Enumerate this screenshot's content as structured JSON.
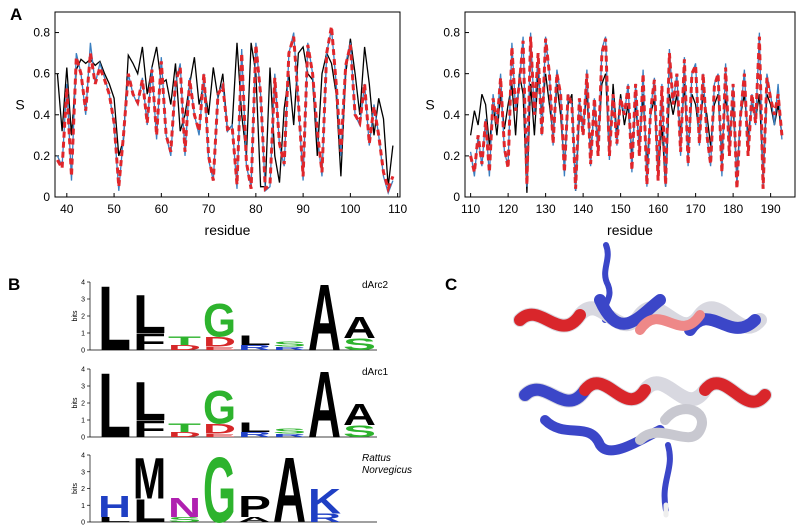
{
  "labels": [
    "A",
    "B",
    "C"
  ],
  "chart_data": [
    {
      "type": "line",
      "ylabel": "S",
      "xlabel": "residue",
      "xlim": [
        37.5,
        110.5
      ],
      "xticks": [
        40,
        50,
        60,
        70,
        80,
        90,
        100,
        110
      ],
      "ylim": [
        0,
        0.9
      ],
      "yticks": [
        0,
        0.2,
        0.4,
        0.6,
        0.8
      ],
      "x": [
        38,
        39,
        40,
        41,
        42,
        43,
        44,
        45,
        46,
        47,
        48,
        49,
        50,
        51,
        52,
        53,
        54,
        55,
        56,
        57,
        58,
        59,
        60,
        61,
        62,
        63,
        64,
        65,
        66,
        67,
        68,
        69,
        70,
        71,
        72,
        73,
        74,
        75,
        76,
        77,
        78,
        79,
        80,
        81,
        82,
        83,
        84,
        85,
        86,
        87,
        88,
        89,
        90,
        91,
        92,
        93,
        94,
        95,
        96,
        97,
        98,
        99,
        100,
        101,
        102,
        103,
        104,
        105,
        106,
        107,
        108,
        109
      ],
      "series": [
        {
          "color": "#000000",
          "dashed": false,
          "values": [
            0.6,
            0.32,
            0.63,
            0.3,
            0.62,
            0.67,
            0.65,
            0.67,
            0.64,
            0.66,
            0.6,
            0.55,
            0.48,
            0.2,
            0.28,
            0.69,
            0.65,
            0.6,
            0.73,
            0.5,
            0.63,
            0.73,
            0.55,
            0.57,
            0.45,
            0.65,
            0.32,
            0.4,
            0.55,
            0.68,
            0.45,
            0.55,
            0.4,
            0.63,
            0.48,
            0.6,
            0.32,
            0.35,
            0.75,
            0.4,
            0.2,
            0.75,
            0.6,
            0.05,
            0.05,
            0.63,
            0.2,
            0.07,
            0.43,
            0.6,
            0.35,
            0.7,
            0.73,
            0.6,
            0.57,
            0.2,
            0.6,
            0.7,
            0.65,
            0.5,
            0.1,
            0.6,
            0.77,
            0.6,
            0.4,
            0.73,
            0.55,
            0.3,
            0.48,
            0.38,
            0.05,
            0.25
          ]
        },
        {
          "color": "#3a7fc0",
          "dashed": false,
          "values": [
            0.2,
            0.15,
            0.55,
            0.08,
            0.7,
            0.6,
            0.4,
            0.75,
            0.55,
            0.65,
            0.58,
            0.5,
            0.35,
            0.03,
            0.3,
            0.6,
            0.5,
            0.45,
            0.58,
            0.35,
            0.63,
            0.28,
            0.68,
            0.3,
            0.2,
            0.55,
            0.65,
            0.2,
            0.58,
            0.4,
            0.3,
            0.6,
            0.18,
            0.08,
            0.5,
            0.55,
            0.32,
            0.35,
            0.04,
            0.72,
            0.15,
            0.05,
            0.75,
            0.5,
            0.03,
            0.05,
            0.6,
            0.25,
            0.15,
            0.7,
            0.8,
            0.45,
            0.08,
            0.75,
            0.6,
            0.3,
            0.1,
            0.7,
            0.82,
            0.55,
            0.2,
            0.65,
            0.75,
            0.4,
            0.35,
            0.55,
            0.25,
            0.45,
            0.3,
            0.1,
            0.02,
            0.08
          ]
        },
        {
          "color": "#e0262b",
          "dashed": true,
          "values": [
            0.18,
            0.14,
            0.53,
            0.1,
            0.68,
            0.6,
            0.42,
            0.7,
            0.55,
            0.63,
            0.57,
            0.5,
            0.36,
            0.05,
            0.3,
            0.6,
            0.5,
            0.46,
            0.57,
            0.36,
            0.62,
            0.3,
            0.66,
            0.3,
            0.22,
            0.56,
            0.63,
            0.22,
            0.57,
            0.4,
            0.32,
            0.6,
            0.2,
            0.08,
            0.5,
            0.54,
            0.33,
            0.34,
            0.06,
            0.7,
            0.17,
            0.04,
            0.74,
            0.5,
            0.04,
            0.06,
            0.58,
            0.26,
            0.16,
            0.7,
            0.78,
            0.46,
            0.1,
            0.74,
            0.6,
            0.32,
            0.12,
            0.7,
            0.83,
            0.55,
            0.22,
            0.64,
            0.74,
            0.4,
            0.36,
            0.55,
            0.26,
            0.44,
            0.3,
            0.12,
            0.04,
            0.1
          ]
        }
      ]
    },
    {
      "type": "line",
      "ylabel": "S",
      "xlabel": "residue",
      "xlim": [
        108.5,
        196.5
      ],
      "xticks": [
        110,
        120,
        130,
        140,
        150,
        160,
        170,
        180,
        190
      ],
      "ylim": [
        0,
        0.9
      ],
      "yticks": [
        0,
        0.2,
        0.4,
        0.6,
        0.8
      ],
      "x": [
        110,
        111,
        112,
        113,
        114,
        115,
        116,
        117,
        118,
        119,
        120,
        121,
        122,
        123,
        124,
        125,
        126,
        127,
        128,
        129,
        130,
        131,
        132,
        133,
        134,
        135,
        136,
        137,
        138,
        139,
        140,
        141,
        142,
        143,
        144,
        145,
        146,
        147,
        148,
        149,
        150,
        151,
        152,
        153,
        154,
        155,
        156,
        157,
        158,
        159,
        160,
        161,
        162,
        163,
        164,
        165,
        166,
        167,
        168,
        169,
        170,
        171,
        172,
        173,
        174,
        175,
        176,
        177,
        178,
        179,
        180,
        181,
        182,
        183,
        184,
        185,
        186,
        187,
        188,
        189,
        190,
        191,
        192,
        193
      ],
      "series": [
        {
          "color": "#000000",
          "dashed": false,
          "values": [
            0.3,
            0.42,
            0.35,
            0.5,
            0.45,
            0.25,
            0.45,
            0.3,
            0.5,
            0.33,
            0.45,
            0.55,
            0.3,
            0.6,
            0.5,
            0.02,
            0.55,
            0.3,
            0.6,
            0.4,
            0.6,
            0.45,
            0.3,
            0.55,
            0.4,
            0.15,
            0.45,
            0.5,
            0.03,
            0.4,
            0.35,
            0.5,
            0.2,
            0.45,
            0.25,
            0.55,
            0.6,
            0.2,
            0.55,
            0.3,
            0.5,
            0.35,
            0.45,
            0.2,
            0.45,
            0.25,
            0.5,
            0.15,
            0.4,
            0.48,
            0.1,
            0.35,
            0.05,
            0.5,
            0.4,
            0.5,
            0.3,
            0.55,
            0.2,
            0.5,
            0.45,
            0.3,
            0.5,
            0.4,
            0.25,
            0.45,
            0.5,
            0.2,
            0.5,
            0.3,
            0.45,
            0.1,
            0.4,
            0.5,
            0.3,
            0.45,
            0.38,
            0.5,
            0.1,
            0.5,
            0.45,
            0.35,
            0.45,
            0.3
          ]
        },
        {
          "color": "#3a7fc0",
          "dashed": false,
          "values": [
            0.22,
            0.1,
            0.3,
            0.15,
            0.38,
            0.1,
            0.5,
            0.35,
            0.6,
            0.22,
            0.15,
            0.75,
            0.42,
            0.55,
            0.78,
            0.05,
            0.8,
            0.4,
            0.7,
            0.3,
            0.78,
            0.6,
            0.25,
            0.62,
            0.5,
            0.1,
            0.5,
            0.45,
            0.03,
            0.48,
            0.3,
            0.62,
            0.15,
            0.48,
            0.2,
            0.72,
            0.78,
            0.18,
            0.5,
            0.25,
            0.48,
            0.4,
            0.55,
            0.12,
            0.55,
            0.2,
            0.62,
            0.05,
            0.42,
            0.58,
            0.08,
            0.55,
            0.05,
            0.72,
            0.45,
            0.6,
            0.2,
            0.68,
            0.15,
            0.6,
            0.65,
            0.25,
            0.6,
            0.3,
            0.15,
            0.55,
            0.6,
            0.1,
            0.65,
            0.2,
            0.55,
            0.05,
            0.4,
            0.62,
            0.2,
            0.5,
            0.35,
            0.8,
            0.05,
            0.6,
            0.5,
            0.35,
            0.55,
            0.28
          ]
        },
        {
          "color": "#e0262b",
          "dashed": true,
          "values": [
            0.2,
            0.12,
            0.3,
            0.16,
            0.37,
            0.12,
            0.48,
            0.35,
            0.58,
            0.24,
            0.14,
            0.73,
            0.42,
            0.55,
            0.76,
            0.06,
            0.78,
            0.4,
            0.7,
            0.3,
            0.77,
            0.6,
            0.26,
            0.6,
            0.5,
            0.12,
            0.5,
            0.45,
            0.04,
            0.48,
            0.3,
            0.6,
            0.16,
            0.48,
            0.2,
            0.7,
            0.77,
            0.2,
            0.5,
            0.26,
            0.48,
            0.4,
            0.54,
            0.13,
            0.55,
            0.2,
            0.6,
            0.06,
            0.42,
            0.57,
            0.08,
            0.54,
            0.06,
            0.7,
            0.45,
            0.6,
            0.22,
            0.67,
            0.16,
            0.6,
            0.64,
            0.26,
            0.6,
            0.3,
            0.16,
            0.54,
            0.6,
            0.12,
            0.63,
            0.2,
            0.55,
            0.04,
            0.4,
            0.6,
            0.2,
            0.5,
            0.36,
            0.78,
            0.04,
            0.58,
            0.48,
            0.4,
            0.5,
            0.3
          ]
        }
      ]
    },
    {
      "type": "logo",
      "ylabel": "bits",
      "ylim": [
        0,
        4
      ],
      "yticks": [
        0,
        1,
        2,
        3,
        4
      ],
      "colors": {
        "L": "#000000",
        "F": "#000000",
        "M": "#000000",
        "A": "#000000",
        "P": "#000000",
        "G": "#2db32d",
        "S": "#2db32d",
        "T": "#2db32d",
        "D": "#d62728",
        "E": "#d62728",
        "H": "#1f3fc4",
        "K": "#1f3fc4",
        "R": "#1f3fc4",
        "N": "#b020b0"
      },
      "logos": [
        {
          "name": "dArc2",
          "positions": [
            [
              {
                "letter": "L",
                "height": 3.9
              }
            ],
            [
              {
                "letter": "F",
                "height": 1.0
              },
              {
                "letter": "L",
                "height": 2.3
              }
            ],
            [
              {
                "letter": "D",
                "height": 0.3
              },
              {
                "letter": "T",
                "height": 0.5
              }
            ],
            [
              {
                "letter": "E",
                "height": 0.2
              },
              {
                "letter": "D",
                "height": 0.6
              },
              {
                "letter": "G",
                "height": 2.0
              }
            ],
            [
              {
                "letter": "R",
                "height": 0.3
              },
              {
                "letter": "L",
                "height": 0.6
              }
            ],
            [
              {
                "letter": "R",
                "height": 0.2
              },
              {
                "letter": "S",
                "height": 0.3
              }
            ],
            [
              {
                "letter": "A",
                "height": 4.0
              }
            ],
            [
              {
                "letter": "S",
                "height": 0.7
              },
              {
                "letter": "A",
                "height": 1.3
              }
            ]
          ]
        },
        {
          "name": "dArc1",
          "positions": [
            [
              {
                "letter": "L",
                "height": 3.9
              }
            ],
            [
              {
                "letter": "F",
                "height": 1.0
              },
              {
                "letter": "L",
                "height": 2.3
              }
            ],
            [
              {
                "letter": "D",
                "height": 0.3
              },
              {
                "letter": "T",
                "height": 0.5
              }
            ],
            [
              {
                "letter": "E",
                "height": 0.2
              },
              {
                "letter": "D",
                "height": 0.6
              },
              {
                "letter": "G",
                "height": 2.0
              }
            ],
            [
              {
                "letter": "R",
                "height": 0.3
              },
              {
                "letter": "L",
                "height": 0.6
              }
            ],
            [
              {
                "letter": "R",
                "height": 0.2
              },
              {
                "letter": "S",
                "height": 0.3
              }
            ],
            [
              {
                "letter": "A",
                "height": 4.0
              }
            ],
            [
              {
                "letter": "S",
                "height": 0.7
              },
              {
                "letter": "A",
                "height": 1.3
              }
            ]
          ]
        },
        {
          "name": "Rattus Norvegicus",
          "positions": [
            [
              {
                "letter": "L",
                "height": 0.3
              },
              {
                "letter": "H",
                "height": 1.3
              }
            ],
            [
              {
                "letter": "L",
                "height": 1.4
              },
              {
                "letter": "M",
                "height": 2.5
              }
            ],
            [
              {
                "letter": "S",
                "height": 0.3
              },
              {
                "letter": "N",
                "height": 1.2
              }
            ],
            [
              {
                "letter": "G",
                "height": 4.0
              }
            ],
            [
              {
                "letter": "A",
                "height": 0.3
              },
              {
                "letter": "P",
                "height": 1.3
              }
            ],
            [
              {
                "letter": "A",
                "height": 4.0
              }
            ],
            [
              {
                "letter": "R",
                "height": 0.5
              },
              {
                "letter": "K",
                "height": 1.5
              }
            ]
          ]
        }
      ]
    }
  ]
}
